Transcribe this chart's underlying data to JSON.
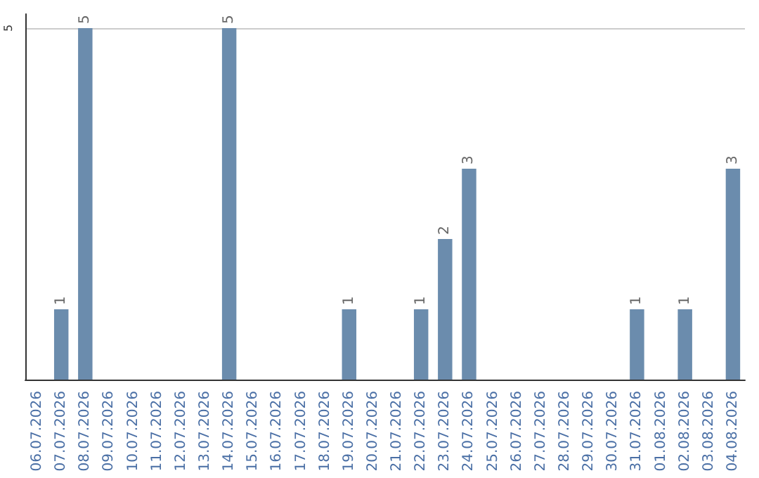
{
  "chart_data": {
    "type": "bar",
    "categories": [
      "06.07.2026",
      "07.07.2026",
      "08.07.2026",
      "09.07.2026",
      "10.07.2026",
      "11.07.2026",
      "12.07.2026",
      "13.07.2026",
      "14.07.2026",
      "15.07.2026",
      "16.07.2026",
      "17.07.2026",
      "18.07.2026",
      "19.07.2026",
      "20.07.2026",
      "21.07.2026",
      "22.07.2026",
      "23.07.2026",
      "24.07.2026",
      "25.07.2026",
      "26.07.2026",
      "27.07.2026",
      "28.07.2026",
      "29.07.2026",
      "30.07.2026",
      "31.07.2026",
      "01.08.2026",
      "02.08.2026",
      "03.08.2026",
      "04.08.2026"
    ],
    "values": [
      0,
      1,
      5,
      0,
      0,
      0,
      0,
      0,
      5,
      0,
      0,
      0,
      0,
      1,
      0,
      0,
      1,
      2,
      3,
      0,
      0,
      0,
      0,
      0,
      0,
      1,
      0,
      1,
      0,
      3
    ],
    "value_labels": [
      null,
      "1",
      "5",
      null,
      null,
      null,
      null,
      null,
      "5",
      null,
      null,
      null,
      null,
      "1",
      null,
      null,
      "1",
      "2",
      "3",
      null,
      null,
      null,
      null,
      null,
      null,
      "1",
      null,
      "1",
      null,
      "3"
    ],
    "color": "#6b8cad",
    "ylim": [
      0,
      5.2
    ],
    "yticks": [
      5
    ],
    "grid": "y"
  }
}
